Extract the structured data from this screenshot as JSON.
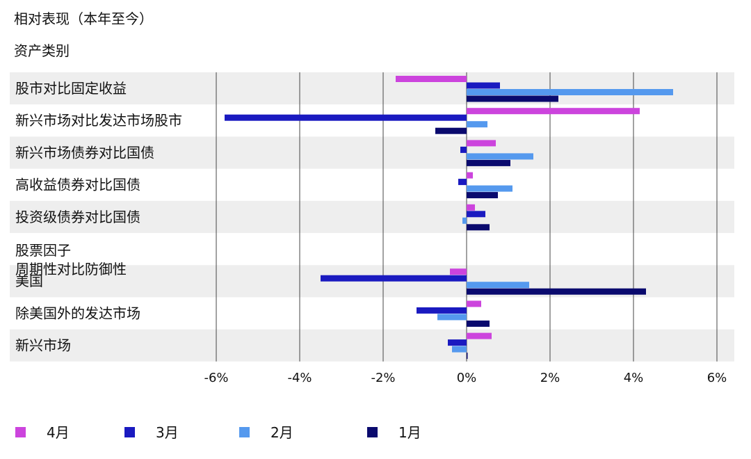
{
  "chart_data": {
    "type": "bar",
    "orientation": "horizontal",
    "title": "相对表现（本年至今）",
    "category_header": "资产类别",
    "categories": [
      "股市对比固定收益",
      "新兴市场对比发达市场股市",
      "新兴市场债券对比国债",
      "高收益债券对比国债",
      "投资级债券对比国债",
      "股票因子\n周期性对比防御性",
      "美国",
      "除美国外的发达市场",
      "新兴市场"
    ],
    "series": [
      {
        "name": "4月",
        "color": "#cc44dd",
        "values": [
          -1.7,
          4.15,
          0.7,
          0.15,
          0.2,
          null,
          -0.4,
          0.35,
          0.6
        ]
      },
      {
        "name": "3月",
        "color": "#1a1ac0",
        "values": [
          0.8,
          -5.8,
          -0.15,
          -0.2,
          0.45,
          null,
          -3.5,
          -1.2,
          -0.45
        ]
      },
      {
        "name": "2月",
        "color": "#5599ee",
        "values": [
          4.95,
          0.5,
          1.6,
          1.1,
          -0.1,
          null,
          1.5,
          -0.7,
          -0.35
        ]
      },
      {
        "name": "1月",
        "color": "#0a0a6e",
        "values": [
          2.2,
          -0.75,
          1.05,
          0.75,
          0.55,
          null,
          4.3,
          0.55,
          0.0
        ]
      }
    ],
    "xlim": [
      -6,
      6
    ],
    "xticks": [
      -6,
      -4,
      -2,
      0,
      2,
      4,
      6
    ],
    "xtick_labels": [
      "-6%",
      "-4%",
      "-2%",
      "0%",
      "2%",
      "4%",
      "6%"
    ],
    "grid": true,
    "legend_position": "bottom",
    "band_color": "#eeeeee"
  }
}
